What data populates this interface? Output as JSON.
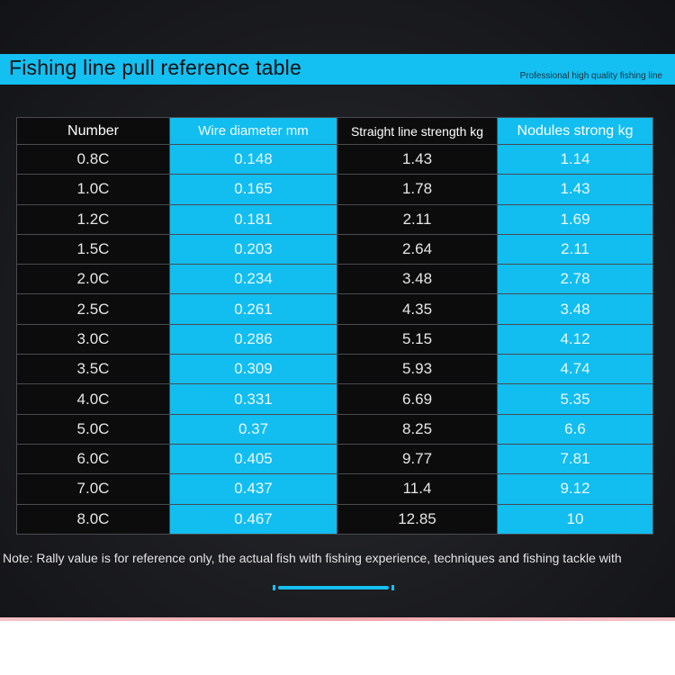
{
  "header": {
    "title": "Fishing line pull reference table",
    "subtitle": "Professional high quality fishing line"
  },
  "table": {
    "headers": [
      "Number",
      "Wire diameter   mm",
      "Straight line strength  kg",
      "Nodules strong kg"
    ],
    "rows": [
      [
        "0.8C",
        "0.148",
        "1.43",
        "1.14"
      ],
      [
        "1.0C",
        "0.165",
        "1.78",
        "1.43"
      ],
      [
        "1.2C",
        "0.181",
        "2.11",
        "1.69"
      ],
      [
        "1.5C",
        "0.203",
        "2.64",
        "2.11"
      ],
      [
        "2.0C",
        "0.234",
        "3.48",
        "2.78"
      ],
      [
        "2.5C",
        "0.261",
        "4.35",
        "3.48"
      ],
      [
        "3.0C",
        "0.286",
        "5.15",
        "4.12"
      ],
      [
        "3.5C",
        "0.309",
        "5.93",
        "4.74"
      ],
      [
        "4.0C",
        "0.331",
        "6.69",
        "5.35"
      ],
      [
        "5.0C",
        "0.37",
        "8.25",
        "6.6"
      ],
      [
        "6.0C",
        "0.405",
        "9.77",
        "7.81"
      ],
      [
        "7.0C",
        "0.437",
        "11.4",
        "9.12"
      ],
      [
        "8.0C",
        "0.467",
        "12.85",
        "10"
      ]
    ]
  },
  "note": "Note: Rally value is for reference only, the actual fish with fishing experience, techniques and fishing tackle with",
  "colors": {
    "accent": "#14bff2",
    "background": "#1c1d21",
    "dark_cell": "#0c0c0d"
  }
}
